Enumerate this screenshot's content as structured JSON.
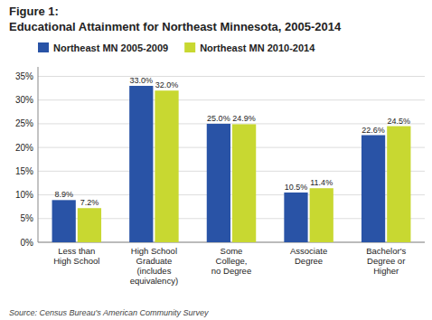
{
  "chart_data": {
    "type": "bar",
    "title": "Figure 1:",
    "subtitle": "Educational Attainment for Northeast Minnesota, 2005-2014",
    "annotations": [
      "Source: Census Bureau's American Community Survey"
    ],
    "categories": [
      "Less than\nHigh School",
      "High School\nGraduate\n(includes\nequivalency)",
      "Some\nCollege,\nno Degree",
      "Associate\nDegree",
      "Bachelor's\nDegree or\nHigher"
    ],
    "series": [
      {
        "name": "Northeast MN 2005-2009",
        "color": "#2953a6",
        "values": [
          8.9,
          33.0,
          25.0,
          10.5,
          22.6
        ],
        "value_labels": [
          "8.9%",
          "33.0%",
          "25.0%",
          "10.5%",
          "22.6%"
        ]
      },
      {
        "name": "Northeast MN 2010-2014",
        "color": "#c8d831",
        "values": [
          7.2,
          32.0,
          24.9,
          11.4,
          24.5
        ],
        "value_labels": [
          "7.2%",
          "32.0%",
          "24.9%",
          "11.4%",
          "24.5%"
        ]
      }
    ],
    "ylim": [
      0,
      37
    ],
    "yticks": [
      {
        "value": 0,
        "label": "0%"
      },
      {
        "value": 5,
        "label": "5%"
      },
      {
        "value": 10,
        "label": "10%"
      },
      {
        "value": 15,
        "label": "15%"
      },
      {
        "value": 20,
        "label": "20%"
      },
      {
        "value": 25,
        "label": "25%"
      },
      {
        "value": 30,
        "label": "30%"
      },
      {
        "value": 35,
        "label": "35%"
      }
    ],
    "grid": true,
    "legend": "upper left",
    "data_labels": true
  }
}
